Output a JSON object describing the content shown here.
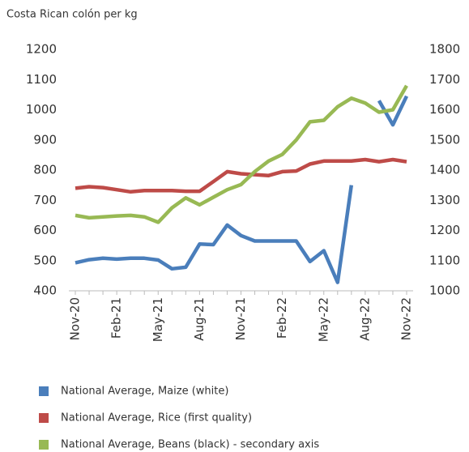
{
  "chart_data": {
    "type": "line",
    "title": "Costa Rican colón per kg",
    "categories": [
      "Nov-20",
      null,
      null,
      "Feb-21",
      null,
      null,
      "May-21",
      null,
      null,
      "Aug-21",
      null,
      null,
      "Nov-21",
      null,
      null,
      "Feb-22",
      null,
      null,
      "May-22",
      null,
      null,
      "Aug-22",
      null,
      null,
      "Nov-22"
    ],
    "series": [
      {
        "name": "National Average, Maize (white)",
        "color": "#4a7ebb",
        "values": [
          493,
          503,
          508,
          505,
          508,
          508,
          502,
          473,
          478,
          555,
          553,
          618,
          583,
          565,
          565,
          565,
          565,
          497,
          533,
          428,
          750,
          null,
          1030,
          950,
          1045
        ]
      },
      {
        "name": "National Average, Rice (first quality)",
        "color": "#be4b48",
        "values": [
          740,
          745,
          742,
          735,
          728,
          732,
          732,
          732,
          730,
          730,
          762,
          795,
          788,
          785,
          782,
          795,
          797,
          820,
          830,
          830,
          830,
          835,
          828,
          835,
          828
        ]
      },
      {
        "name": "National Average, Beans (black) - secondary axis",
        "color": "#98b954",
        "axis": "y2",
        "values": [
          1250,
          1242,
          1245,
          1248,
          1250,
          1245,
          1227,
          1275,
          1308,
          1285,
          1310,
          1335,
          1352,
          1395,
          1430,
          1452,
          1500,
          1560,
          1565,
          1610,
          1638,
          1622,
          1592,
          1600,
          1680
        ]
      }
    ],
    "ylim": [
      400,
      1200
    ],
    "yticks": [
      400,
      500,
      600,
      700,
      800,
      900,
      1000,
      1100,
      1200
    ],
    "y2lim": [
      1000,
      1800
    ],
    "y2ticks": [
      1000,
      1100,
      1200,
      1300,
      1400,
      1500,
      1600,
      1700,
      1800
    ],
    "legend": "bottom"
  }
}
